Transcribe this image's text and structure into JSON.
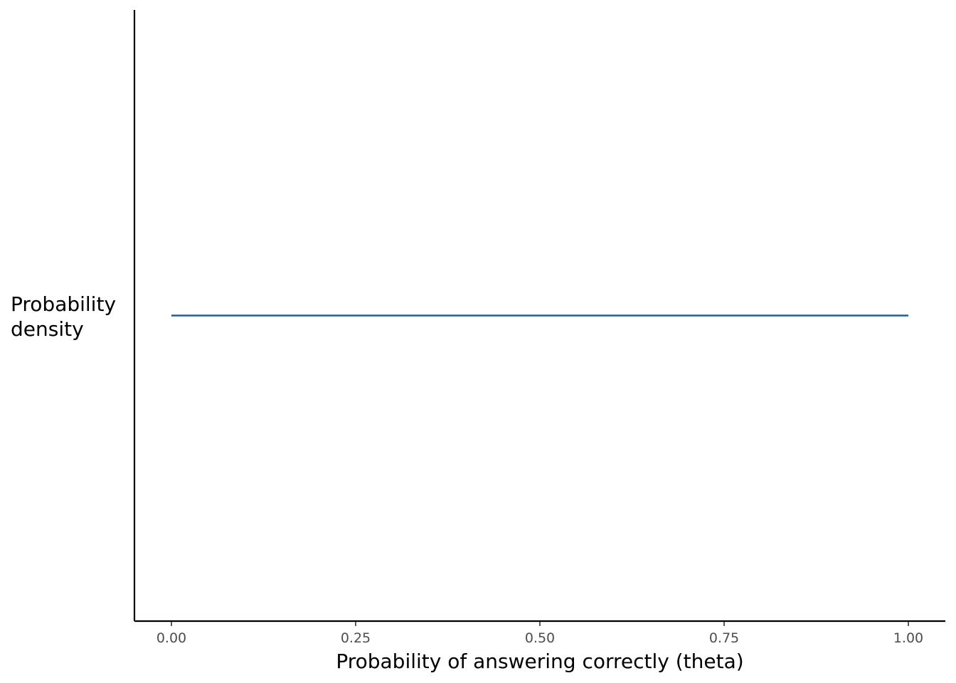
{
  "chart_data": {
    "type": "line",
    "title": "",
    "xlabel": "Probability of answering correctly (theta)",
    "ylabel_lines": [
      "Probability",
      "density"
    ],
    "xlim": [
      0,
      1
    ],
    "ylim": [
      0,
      2
    ],
    "x_ticks": [
      {
        "value": 0,
        "label": "0.00"
      },
      {
        "value": 0.25,
        "label": "0.25"
      },
      {
        "value": 0.5,
        "label": "0.50"
      },
      {
        "value": 0.75,
        "label": "0.75"
      },
      {
        "value": 1,
        "label": "1.00"
      }
    ],
    "y_ticks_shown": false,
    "grid": false,
    "legend": "none",
    "series": [
      {
        "color": "#1f5e96",
        "x": [
          0,
          1
        ],
        "y": [
          1,
          1
        ]
      }
    ]
  }
}
